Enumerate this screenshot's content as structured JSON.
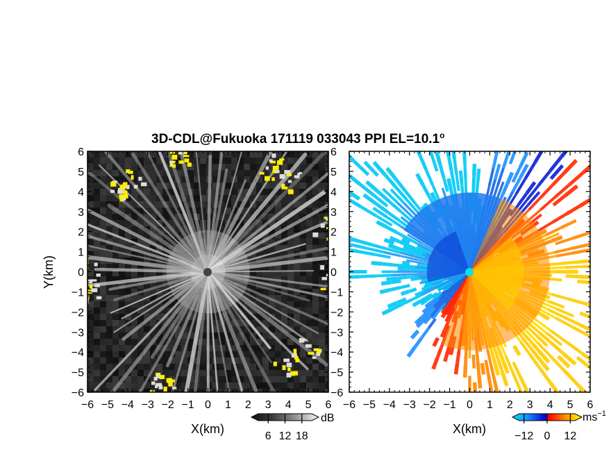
{
  "title": "3D-CDL@Fukuoka 171119 033043 PPI EL=10.1",
  "title_degree": "o",
  "chart_data": [
    {
      "type": "heatmap",
      "name": "reflectivity-panel",
      "xlabel": "X(km)",
      "ylabel": "Y(km)",
      "xlim": [
        -6,
        6
      ],
      "ylim": [
        -6,
        6
      ],
      "ticks": [
        -6,
        -5,
        -4,
        -3,
        -2,
        -1,
        0,
        1,
        2,
        3,
        4,
        5,
        6
      ],
      "tick_labels": [
        "−6",
        "−5",
        "−4",
        "−3",
        "−2",
        "−1",
        "0",
        "1",
        "2",
        "3",
        "4",
        "5",
        "6"
      ],
      "colorbar": {
        "unit": "dB",
        "ticks": [
          6,
          12,
          18
        ],
        "tick_labels": [
          "6",
          "12",
          "18"
        ],
        "range": [
          0,
          24
        ],
        "colors": [
          "#111111",
          "#3a3a3a",
          "#777777",
          "#bbbbbb",
          "#eeeeee",
          "#ffff00"
        ]
      },
      "highlight_color": "#ffee00"
    },
    {
      "type": "heatmap",
      "name": "doppler-velocity-panel",
      "xlabel": "X(km)",
      "xlim": [
        -6,
        6
      ],
      "ylim": [
        -6,
        6
      ],
      "ticks": [
        -6,
        -5,
        -4,
        -3,
        -2,
        -1,
        0,
        1,
        2,
        3,
        4,
        5,
        6
      ],
      "tick_labels": [
        "−6",
        "−5",
        "−4",
        "−3",
        "−2",
        "−1",
        "0",
        "1",
        "2",
        "3",
        "4",
        "5",
        "6"
      ],
      "colorbar": {
        "unit": "ms",
        "unit_exponent": "−1",
        "ticks": [
          -12,
          0,
          12
        ],
        "tick_labels": [
          "−12",
          "0",
          "12"
        ],
        "range": [
          -18,
          18
        ],
        "colors": [
          "#00e5ff",
          "#1a8cff",
          "#0000cc",
          "#ff0000",
          "#ff9900",
          "#ffff00"
        ]
      }
    }
  ]
}
